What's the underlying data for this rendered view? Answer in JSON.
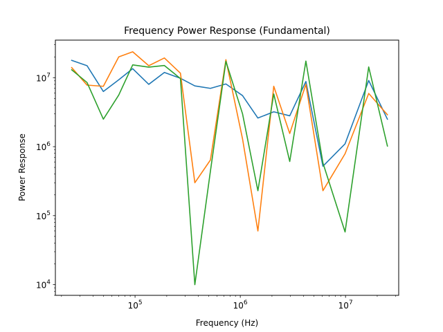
{
  "chart_data": {
    "type": "line",
    "title": "Frequency Power Response (Fundamental)",
    "xlabel": "Frequency (Hz)",
    "ylabel": "Power Response",
    "xscale": "log",
    "yscale": "log",
    "xlim": [
      17500,
      32000000
    ],
    "ylim": [
      7000,
      35000000
    ],
    "grid": false,
    "legend": "none",
    "x_ticks": [
      {
        "value": 100000,
        "base": "10",
        "exp": "5"
      },
      {
        "value": 1000000,
        "base": "10",
        "exp": "6"
      },
      {
        "value": 10000000,
        "base": "10",
        "exp": "7"
      }
    ],
    "y_ticks": [
      {
        "value": 10000,
        "base": "10",
        "exp": "4"
      },
      {
        "value": 100000,
        "base": "10",
        "exp": "5"
      },
      {
        "value": 1000000,
        "base": "10",
        "exp": "6"
      },
      {
        "value": 10000000,
        "base": "10",
        "exp": "7"
      }
    ],
    "x": [
      25000,
      35000,
      50000,
      70000,
      95000,
      135000,
      190000,
      270000,
      370000,
      520000,
      730000,
      1050000,
      1470000,
      2080000,
      2950000,
      4200000,
      6100000,
      9900000,
      16600000,
      25000000
    ],
    "series": [
      {
        "color": "#1f77b4",
        "values": [
          17800000,
          14900000,
          6300000,
          9300000,
          13500000,
          8000000,
          11900000,
          9800000,
          7600000,
          7000000,
          8100000,
          5500000,
          2600000,
          3200000,
          2800000,
          8800000,
          520000,
          1100000,
          9100000,
          2500000
        ]
      },
      {
        "color": "#ff7f0e",
        "values": [
          14000000,
          7800000,
          7500000,
          20000000,
          23700000,
          14900000,
          19300000,
          11600000,
          300000,
          640000,
          18200000,
          1300000,
          60000,
          7500000,
          1550000,
          8000000,
          230000,
          790000,
          5900000,
          2900000
        ]
      },
      {
        "color": "#2ca02c",
        "values": [
          13000000,
          8500000,
          2500000,
          5600000,
          15300000,
          14200000,
          15000000,
          9700000,
          10000,
          440000,
          17200000,
          3000000,
          230000,
          5800000,
          610000,
          17400000,
          580000,
          58000,
          14300000,
          1020000
        ]
      }
    ]
  }
}
